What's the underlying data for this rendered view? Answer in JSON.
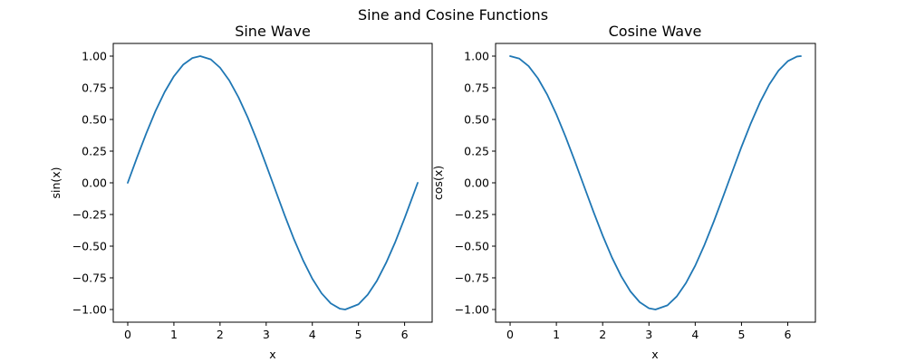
{
  "figure": {
    "title": "Sine and Cosine Functions"
  },
  "chart_data": [
    {
      "type": "line",
      "title": "Sine Wave",
      "xlabel": "x",
      "ylabel": "sin(x)",
      "xlim": [
        -0.314,
        6.597
      ],
      "ylim": [
        -1.1,
        1.1
      ],
      "xticks": [
        0,
        1,
        2,
        3,
        4,
        5,
        6
      ],
      "yticks": [
        -1.0,
        -0.75,
        -0.5,
        -0.25,
        0.0,
        0.25,
        0.5,
        0.75,
        1.0
      ],
      "xtick_labels": [
        "0",
        "1",
        "2",
        "3",
        "4",
        "5",
        "6"
      ],
      "ytick_labels": [
        "−1.00",
        "−0.75",
        "−0.50",
        "−0.25",
        "0.00",
        "0.25",
        "0.50",
        "0.75",
        "1.00"
      ],
      "grid": false,
      "series": [
        {
          "color": "#1f77b4",
          "x": [
            0,
            0.2,
            0.4,
            0.6,
            0.8,
            1.0,
            1.2,
            1.4,
            1.5708,
            1.8,
            2.0,
            2.2,
            2.4,
            2.6,
            2.8,
            3.0,
            3.1416,
            3.4,
            3.6,
            3.8,
            4.0,
            4.2,
            4.4,
            4.6,
            4.7124,
            5.0,
            5.2,
            5.4,
            5.6,
            5.8,
            6.0,
            6.2,
            6.2832
          ],
          "y": [
            0.0,
            0.199,
            0.389,
            0.565,
            0.717,
            0.841,
            0.932,
            0.985,
            1.0,
            0.974,
            0.909,
            0.808,
            0.675,
            0.516,
            0.335,
            0.141,
            0.0,
            -0.256,
            -0.443,
            -0.612,
            -0.757,
            -0.872,
            -0.952,
            -0.994,
            -1.0,
            -0.959,
            -0.883,
            -0.773,
            -0.631,
            -0.465,
            -0.279,
            -0.083,
            0.0
          ]
        }
      ]
    },
    {
      "type": "line",
      "title": "Cosine Wave",
      "xlabel": "x",
      "ylabel": "cos(x)",
      "xlim": [
        -0.314,
        6.597
      ],
      "ylim": [
        -1.1,
        1.1
      ],
      "xticks": [
        0,
        1,
        2,
        3,
        4,
        5,
        6
      ],
      "yticks": [
        -1.0,
        -0.75,
        -0.5,
        -0.25,
        0.0,
        0.25,
        0.5,
        0.75,
        1.0
      ],
      "xtick_labels": [
        "0",
        "1",
        "2",
        "3",
        "4",
        "5",
        "6"
      ],
      "ytick_labels": [
        "−1.00",
        "−0.75",
        "−0.50",
        "−0.25",
        "0.00",
        "0.25",
        "0.50",
        "0.75",
        "1.00"
      ],
      "grid": false,
      "series": [
        {
          "color": "#1f77b4",
          "x": [
            0,
            0.2,
            0.4,
            0.6,
            0.8,
            1.0,
            1.2,
            1.4,
            1.5708,
            1.8,
            2.0,
            2.2,
            2.4,
            2.6,
            2.8,
            3.0,
            3.1416,
            3.4,
            3.6,
            3.8,
            4.0,
            4.2,
            4.4,
            4.6,
            4.7124,
            5.0,
            5.2,
            5.4,
            5.6,
            5.8,
            6.0,
            6.2,
            6.2832
          ],
          "y": [
            1.0,
            0.98,
            0.921,
            0.825,
            0.697,
            0.54,
            0.362,
            0.17,
            0.0,
            -0.227,
            -0.416,
            -0.589,
            -0.737,
            -0.857,
            -0.942,
            -0.99,
            -1.0,
            -0.967,
            -0.897,
            -0.791,
            -0.654,
            -0.49,
            -0.307,
            -0.112,
            0.0,
            0.284,
            0.468,
            0.635,
            0.776,
            0.886,
            0.96,
            0.997,
            1.0
          ]
        }
      ]
    }
  ]
}
